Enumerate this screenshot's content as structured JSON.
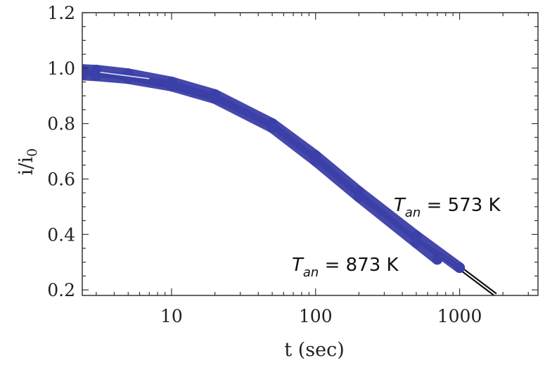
{
  "chart_data": {
    "type": "line",
    "xscale": "log",
    "xlim": [
      2.4,
      3500
    ],
    "ylim": [
      0.18,
      1.2
    ],
    "xticks": [
      10,
      100,
      1000
    ],
    "xtick_labels": [
      "10",
      "100",
      "1000"
    ],
    "yticks": [
      0.2,
      0.4,
      0.6,
      0.8,
      1.0,
      1.2
    ],
    "ytick_labels": [
      "0.2",
      "0.4",
      "0.6",
      "0.8",
      "1.0",
      "1.2"
    ],
    "xlabel": "t (sec)",
    "ylabel_main": "i/i",
    "ylabel_sub": "0",
    "grid": false,
    "series": [
      {
        "kind": "fit-lines",
        "color": "#111111",
        "x": [
          2.4,
          5,
          10,
          20,
          50,
          100,
          200,
          500,
          1000,
          1800
        ],
        "y": [
          0.985,
          0.965,
          0.935,
          0.89,
          0.79,
          0.67,
          0.54,
          0.38,
          0.28,
          0.18
        ]
      },
      {
        "name": "T_an = 573 K",
        "kind": "data-band",
        "color": "#3b3fa8",
        "x": [
          2.4,
          3,
          5,
          10,
          20,
          50,
          100,
          200,
          500,
          1000
        ],
        "y": [
          0.995,
          0.993,
          0.98,
          0.95,
          0.905,
          0.8,
          0.685,
          0.555,
          0.395,
          0.28
        ]
      },
      {
        "name": "T_an = 873 K",
        "kind": "data-band",
        "color": "#3b3fa8",
        "x": [
          2.4,
          3,
          5,
          10,
          20,
          50,
          100,
          200,
          500,
          700
        ],
        "y": [
          0.975,
          0.972,
          0.962,
          0.935,
          0.89,
          0.785,
          0.665,
          0.535,
          0.37,
          0.31
        ]
      }
    ],
    "annotations": [
      {
        "italic": "T",
        "sub": "an",
        "text": " = 573 K"
      },
      {
        "italic": "T",
        "sub": "an",
        "text": " = 873 K"
      }
    ]
  }
}
